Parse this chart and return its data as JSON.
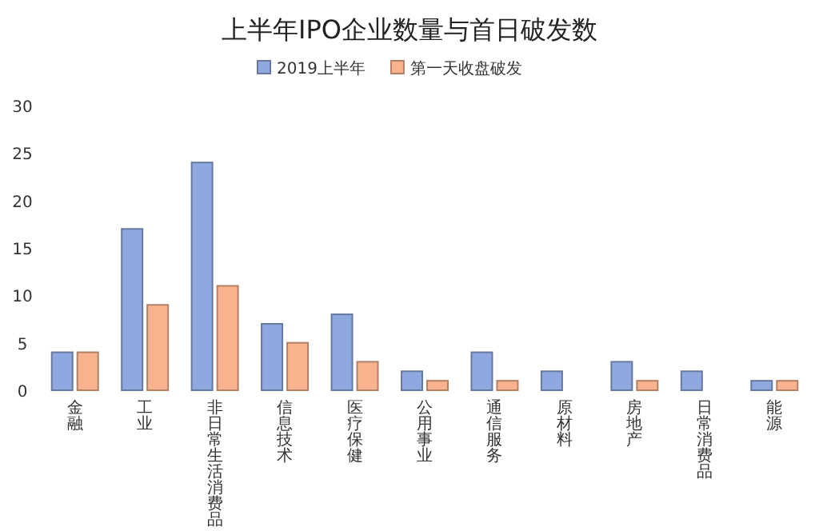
{
  "chart_data": {
    "type": "bar",
    "title": "上半年IPO企业数量与首日破发数",
    "categories": [
      "金融",
      "工业",
      "非日常生活消费品",
      "信息技术",
      "医疗保健",
      "公用事业",
      "通信服务",
      "原材料",
      "房地产",
      "日常消费品",
      "能源"
    ],
    "series": [
      {
        "name": "2019上半年",
        "color": "#8fa8e0",
        "values": [
          4,
          17,
          24,
          7,
          8,
          2,
          4,
          2,
          3,
          2,
          1
        ]
      },
      {
        "name": "第一天收盘破发",
        "color": "#f8b28e",
        "values": [
          4,
          9,
          11,
          5,
          3,
          1,
          1,
          0,
          1,
          0,
          1
        ]
      }
    ],
    "ylim": [
      0,
      30
    ],
    "yticks": [
      0,
      5,
      10,
      15,
      20,
      25,
      30
    ],
    "grid": false,
    "legend": "top"
  }
}
